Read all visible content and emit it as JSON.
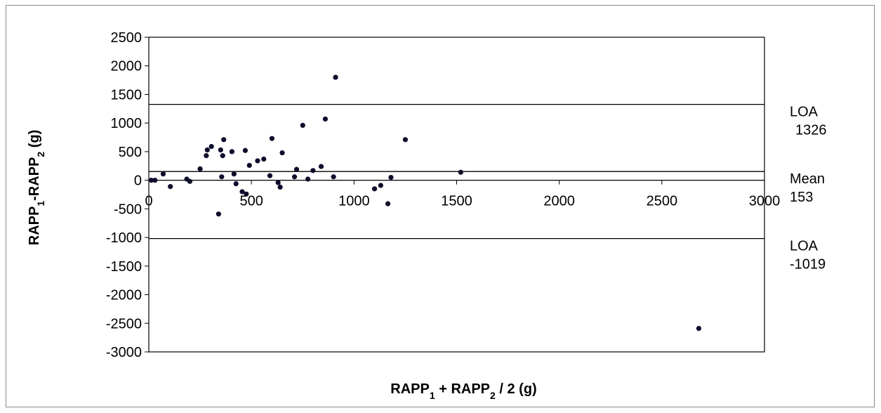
{
  "chart_data": {
    "type": "scatter",
    "title": "",
    "xlabel_parts": [
      "RAPP",
      "1",
      " + RAPP",
      "2",
      " / 2 (g)"
    ],
    "ylabel_parts": [
      "RAPP",
      "1",
      "-RAPP",
      "2",
      " (g)"
    ],
    "xlim": [
      0,
      3000
    ],
    "ylim": [
      -3000,
      2500
    ],
    "xticks": [
      0,
      500,
      1000,
      1500,
      2000,
      2500,
      3000
    ],
    "yticks": [
      2500,
      2000,
      1500,
      1000,
      500,
      0,
      -500,
      -1000,
      -1500,
      -2000,
      -2500,
      -3000
    ],
    "grid": false,
    "marker_color": "#0d0d2b",
    "reference_lines": [
      {
        "value": 1326,
        "label": "LOA",
        "value_label": "1326"
      },
      {
        "value": 153,
        "label": "Mean",
        "value_label": "153"
      },
      {
        "value": -1019,
        "label": "LOA",
        "value_label": "-1019"
      }
    ],
    "points": [
      {
        "x": 12,
        "y": 0
      },
      {
        "x": 30,
        "y": 0
      },
      {
        "x": 70,
        "y": 110
      },
      {
        "x": 105,
        "y": -110
      },
      {
        "x": 185,
        "y": 20
      },
      {
        "x": 200,
        "y": -20
      },
      {
        "x": 250,
        "y": 200
      },
      {
        "x": 280,
        "y": 430
      },
      {
        "x": 285,
        "y": 530
      },
      {
        "x": 305,
        "y": 590
      },
      {
        "x": 340,
        "y": -590
      },
      {
        "x": 350,
        "y": 530
      },
      {
        "x": 355,
        "y": 60
      },
      {
        "x": 360,
        "y": 430
      },
      {
        "x": 365,
        "y": 710
      },
      {
        "x": 405,
        "y": 500
      },
      {
        "x": 415,
        "y": 110
      },
      {
        "x": 425,
        "y": -60
      },
      {
        "x": 455,
        "y": -200
      },
      {
        "x": 470,
        "y": 520
      },
      {
        "x": 475,
        "y": -240
      },
      {
        "x": 490,
        "y": 260
      },
      {
        "x": 530,
        "y": 340
      },
      {
        "x": 560,
        "y": 370
      },
      {
        "x": 590,
        "y": 80
      },
      {
        "x": 600,
        "y": 730
      },
      {
        "x": 630,
        "y": -40
      },
      {
        "x": 640,
        "y": -120
      },
      {
        "x": 650,
        "y": 480
      },
      {
        "x": 710,
        "y": 60
      },
      {
        "x": 720,
        "y": 190
      },
      {
        "x": 750,
        "y": 960
      },
      {
        "x": 775,
        "y": 20
      },
      {
        "x": 800,
        "y": 170
      },
      {
        "x": 840,
        "y": 240
      },
      {
        "x": 860,
        "y": 1070
      },
      {
        "x": 900,
        "y": 60
      },
      {
        "x": 910,
        "y": 1800
      },
      {
        "x": 1100,
        "y": -150
      },
      {
        "x": 1130,
        "y": -90
      },
      {
        "x": 1165,
        "y": -410
      },
      {
        "x": 1180,
        "y": 50
      },
      {
        "x": 1250,
        "y": 710
      },
      {
        "x": 1520,
        "y": 140
      },
      {
        "x": 2680,
        "y": -2590
      }
    ]
  }
}
